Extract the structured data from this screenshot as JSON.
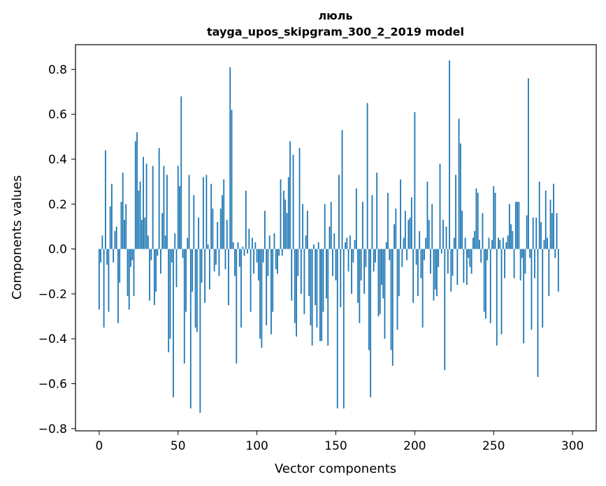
{
  "chart_data": {
    "type": "bar",
    "title_line1": "люль",
    "title_line2": "tayga_upos_skipgram_300_2_2019 model",
    "xlabel": "Vector components",
    "ylabel": "Components values",
    "xlim": [
      -15,
      315
    ],
    "ylim": [
      -0.81,
      0.91
    ],
    "xticks": [
      0,
      50,
      100,
      150,
      200,
      250,
      300
    ],
    "xtick_labels": [
      "0",
      "50",
      "100",
      "150",
      "200",
      "250",
      "300"
    ],
    "yticks": [
      -0.8,
      -0.6,
      -0.4,
      -0.2,
      0.0,
      0.2,
      0.4,
      0.6,
      0.8
    ],
    "ytick_labels": [
      "−0.8",
      "−0.6",
      "−0.4",
      "−0.2",
      "0.0",
      "0.2",
      "0.4",
      "0.6",
      "0.8"
    ],
    "bar_color": "#1f77b4",
    "grid": false,
    "values": [
      -0.27,
      -0.06,
      0.06,
      -0.35,
      0.44,
      -0.07,
      -0.28,
      0.19,
      0.29,
      -0.06,
      0.08,
      0.1,
      -0.33,
      -0.15,
      0.21,
      0.34,
      0.13,
      0.2,
      -0.21,
      -0.27,
      -0.08,
      -0.05,
      -0.21,
      0.48,
      0.52,
      0.26,
      0.3,
      0.13,
      0.41,
      0.14,
      0.38,
      0.06,
      -0.23,
      -0.05,
      0.37,
      -0.25,
      -0.19,
      -0.03,
      0.45,
      -0.11,
      0.16,
      0.37,
      0.06,
      0.33,
      -0.46,
      -0.4,
      -0.06,
      -0.66,
      0.07,
      -0.17,
      0.37,
      0.28,
      0.68,
      -0.04,
      -0.51,
      -0.28,
      0.05,
      0.33,
      -0.71,
      -0.19,
      0.24,
      -0.35,
      -0.37,
      0.14,
      -0.73,
      -0.15,
      0.32,
      -0.24,
      0.33,
      0.02,
      -0.18,
      0.29,
      0.18,
      -0.1,
      -0.07,
      0.12,
      -0.12,
      0.18,
      0.24,
      0.31,
      -0.09,
      0.13,
      -0.25,
      0.81,
      0.62,
      0.03,
      -0.12,
      -0.51,
      0.03,
      -0.08,
      -0.35,
      0.01,
      -0.03,
      0.26,
      -0.02,
      0.09,
      -0.28,
      0.05,
      -0.11,
      0.03,
      -0.06,
      -0.14,
      -0.4,
      -0.44,
      -0.06,
      0.17,
      -0.34,
      -0.12,
      0.06,
      -0.38,
      -0.28,
      0.07,
      -0.09,
      -0.11,
      -0.03,
      0.31,
      -0.03,
      0.26,
      0.22,
      0.16,
      0.32,
      0.48,
      -0.23,
      0.42,
      -0.33,
      -0.39,
      -0.12,
      0.45,
      -0.2,
      0.2,
      -0.29,
      0.06,
      0.17,
      -0.21,
      -0.34,
      -0.43,
      0.02,
      -0.25,
      -0.35,
      0.03,
      -0.41,
      -0.41,
      -0.28,
      0.2,
      -0.22,
      -0.43,
      0.1,
      0.21,
      -0.12,
      0.07,
      -0.14,
      -0.71,
      0.33,
      -0.26,
      0.53,
      -0.71,
      0.03,
      0.05,
      -0.1,
      0.06,
      -0.2,
      -0.06,
      0.04,
      0.27,
      -0.24,
      -0.33,
      -0.14,
      0.21,
      -0.2,
      -0.08,
      0.65,
      -0.45,
      -0.66,
      0.24,
      -0.1,
      -0.06,
      0.34,
      -0.3,
      -0.29,
      -0.16,
      -0.22,
      -0.4,
      0.03,
      0.25,
      -0.05,
      -0.45,
      -0.52,
      0.11,
      0.18,
      -0.36,
      -0.21,
      0.31,
      -0.08,
      0.05,
      0.17,
      -0.05,
      0.13,
      0.14,
      0.23,
      -0.24,
      0.61,
      -0.07,
      -0.21,
      0.08,
      -0.13,
      -0.35,
      -0.05,
      0.05,
      0.3,
      0.13,
      -0.11,
      0.2,
      -0.23,
      -0.18,
      -0.21,
      -0.08,
      0.38,
      -0.02,
      0.13,
      -0.54,
      0.1,
      -0.11,
      0.84,
      -0.19,
      -0.12,
      0.05,
      0.33,
      -0.16,
      0.58,
      0.47,
      0.17,
      -0.15,
      0.05,
      -0.16,
      -0.04,
      -0.08,
      -0.11,
      0.05,
      0.08,
      0.27,
      0.25,
      0.04,
      -0.06,
      0.16,
      -0.28,
      -0.31,
      -0.05,
      0.05,
      -0.33,
      0.04,
      0.28,
      0.25,
      -0.43,
      0.05,
      0.04,
      -0.38,
      0.05,
      -0.13,
      0.03,
      0.06,
      0.2,
      0.11,
      0.08,
      -0.13,
      0.21,
      0.21,
      0.21,
      -0.14,
      -0.04,
      -0.42,
      -0.11,
      0.15,
      0.76,
      -0.04,
      -0.36,
      0.14,
      -0.13,
      0.14,
      -0.57,
      0.3,
      0.12,
      -0.35,
      0.04,
      0.26,
      0.05,
      -0.21,
      0.22,
      0.16,
      0.29,
      -0.04,
      0.16,
      -0.19
    ]
  }
}
